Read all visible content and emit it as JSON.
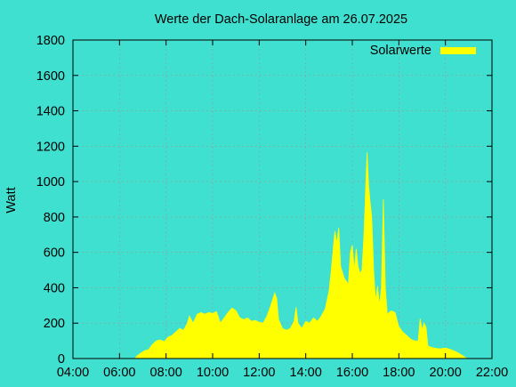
{
  "chart_data": {
    "type": "area",
    "title": "Werte der Dach-Solaranlage am 26.07.2025",
    "xlabel": "",
    "ylabel": "Watt",
    "xlim": [
      "04:00",
      "22:00"
    ],
    "ylim": [
      0,
      1800
    ],
    "x_ticks": [
      "04:00",
      "06:00",
      "08:00",
      "10:00",
      "12:00",
      "14:00",
      "16:00",
      "18:00",
      "20:00",
      "22:00"
    ],
    "y_ticks": [
      0,
      200,
      400,
      600,
      800,
      1000,
      1200,
      1400,
      1600,
      1800
    ],
    "grid": true,
    "legend": "top-right",
    "colors": {
      "background": "#40e0d0",
      "series": "#ffff00",
      "grid": "#999999"
    },
    "series": [
      {
        "name": "Solarwerte",
        "points": [
          [
            "06:40",
            0
          ],
          [
            "06:45",
            15
          ],
          [
            "06:55",
            30
          ],
          [
            "07:05",
            45
          ],
          [
            "07:15",
            50
          ],
          [
            "07:25",
            80
          ],
          [
            "07:35",
            100
          ],
          [
            "07:45",
            105
          ],
          [
            "07:55",
            95
          ],
          [
            "08:05",
            120
          ],
          [
            "08:15",
            130
          ],
          [
            "08:25",
            150
          ],
          [
            "08:35",
            170
          ],
          [
            "08:45",
            160
          ],
          [
            "08:55",
            200
          ],
          [
            "09:00",
            240
          ],
          [
            "09:10",
            200
          ],
          [
            "09:20",
            250
          ],
          [
            "09:30",
            260
          ],
          [
            "09:40",
            250
          ],
          [
            "09:50",
            260
          ],
          [
            "10:00",
            255
          ],
          [
            "10:10",
            265
          ],
          [
            "10:20",
            200
          ],
          [
            "10:30",
            230
          ],
          [
            "10:40",
            260
          ],
          [
            "10:50",
            285
          ],
          [
            "11:00",
            270
          ],
          [
            "11:10",
            230
          ],
          [
            "11:20",
            220
          ],
          [
            "11:30",
            230
          ],
          [
            "11:40",
            210
          ],
          [
            "11:50",
            215
          ],
          [
            "12:00",
            205
          ],
          [
            "12:10",
            200
          ],
          [
            "12:20",
            240
          ],
          [
            "12:30",
            300
          ],
          [
            "12:40",
            370
          ],
          [
            "12:45",
            340
          ],
          [
            "12:50",
            220
          ],
          [
            "13:00",
            170
          ],
          [
            "13:10",
            160
          ],
          [
            "13:20",
            170
          ],
          [
            "13:30",
            210
          ],
          [
            "13:35",
            290
          ],
          [
            "13:40",
            200
          ],
          [
            "13:50",
            170
          ],
          [
            "14:00",
            210
          ],
          [
            "14:10",
            200
          ],
          [
            "14:20",
            230
          ],
          [
            "14:30",
            210
          ],
          [
            "14:40",
            240
          ],
          [
            "14:50",
            280
          ],
          [
            "15:00",
            380
          ],
          [
            "15:05",
            480
          ],
          [
            "15:10",
            600
          ],
          [
            "15:15",
            720
          ],
          [
            "15:20",
            650
          ],
          [
            "15:25",
            740
          ],
          [
            "15:30",
            520
          ],
          [
            "15:40",
            450
          ],
          [
            "15:50",
            420
          ],
          [
            "15:55",
            600
          ],
          [
            "16:00",
            640
          ],
          [
            "16:05",
            500
          ],
          [
            "16:10",
            620
          ],
          [
            "16:15",
            520
          ],
          [
            "16:20",
            480
          ],
          [
            "16:25",
            500
          ],
          [
            "16:30",
            700
          ],
          [
            "16:35",
            1000
          ],
          [
            "16:38",
            1165
          ],
          [
            "16:42",
            980
          ],
          [
            "16:46",
            880
          ],
          [
            "16:50",
            800
          ],
          [
            "16:55",
            500
          ],
          [
            "17:00",
            320
          ],
          [
            "17:05",
            410
          ],
          [
            "17:10",
            300
          ],
          [
            "17:15",
            400
          ],
          [
            "17:20",
            900
          ],
          [
            "17:25",
            400
          ],
          [
            "17:30",
            250
          ],
          [
            "17:40",
            270
          ],
          [
            "17:50",
            260
          ],
          [
            "18:00",
            180
          ],
          [
            "18:10",
            150
          ],
          [
            "18:20",
            130
          ],
          [
            "18:30",
            110
          ],
          [
            "18:40",
            100
          ],
          [
            "18:50",
            100
          ],
          [
            "18:55",
            225
          ],
          [
            "19:00",
            160
          ],
          [
            "19:05",
            200
          ],
          [
            "19:10",
            175
          ],
          [
            "19:15",
            70
          ],
          [
            "19:30",
            60
          ],
          [
            "19:45",
            55
          ],
          [
            "20:00",
            60
          ],
          [
            "20:15",
            50
          ],
          [
            "20:30",
            35
          ],
          [
            "20:45",
            15
          ],
          [
            "20:55",
            0
          ]
        ]
      }
    ]
  }
}
